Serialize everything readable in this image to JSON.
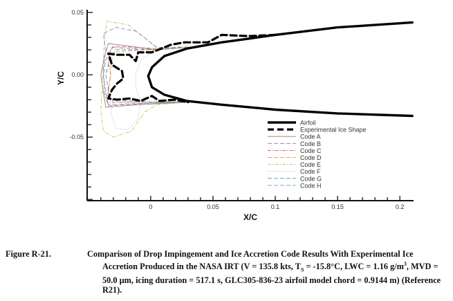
{
  "chart_data": {
    "type": "line",
    "xlabel": "X/C",
    "ylabel": "Y/C",
    "xlim": [
      -0.051,
      0.211
    ],
    "ylim": [
      -0.101,
      0.05
    ],
    "xticks": [
      0,
      0.05,
      0.1,
      0.15,
      0.2
    ],
    "xtick_labels": [
      "0",
      "0.05",
      "0.1",
      "0.15",
      "0.2"
    ],
    "yticks": [
      0.05,
      0.0,
      -0.05
    ],
    "ytick_labels": [
      "0.05",
      "0.00",
      "-0.05"
    ],
    "grid": false,
    "legend_placement": "center-right",
    "series": [
      {
        "name": "Airfoil",
        "color": "#000000",
        "style": "solid-thick",
        "points": [
          [
            0.21,
            0.042
          ],
          [
            0.15,
            0.038
          ],
          [
            0.1,
            0.032
          ],
          [
            0.079,
            0.029
          ],
          [
            0.057,
            0.026
          ],
          [
            0.029,
            0.021
          ],
          [
            0.011,
            0.015
          ],
          [
            0.001,
            0.006
          ],
          [
            -0.002,
            -0.001
          ],
          [
            0.001,
            -0.01
          ],
          [
            0.011,
            -0.016
          ],
          [
            0.029,
            -0.021
          ],
          [
            0.057,
            -0.024
          ],
          [
            0.079,
            -0.026
          ],
          [
            0.1,
            -0.028
          ],
          [
            0.15,
            -0.031
          ],
          [
            0.21,
            -0.033
          ]
        ]
      },
      {
        "name": "Experimental Ice Shape",
        "color": "#000000",
        "style": "dashed-thick",
        "points": [
          [
            0.1,
            0.032
          ],
          [
            0.079,
            0.031
          ],
          [
            0.057,
            0.032
          ],
          [
            0.046,
            0.026
          ],
          [
            0.027,
            0.026
          ],
          [
            0.016,
            0.024
          ],
          [
            0.001,
            0.018
          ],
          [
            -0.01,
            0.018
          ],
          [
            -0.012,
            0.011
          ],
          [
            -0.017,
            0.016
          ],
          [
            -0.027,
            0.016
          ],
          [
            -0.034,
            0.017
          ],
          [
            -0.031,
            0.008
          ],
          [
            -0.023,
            0.003
          ],
          [
            -0.022,
            -0.003
          ],
          [
            -0.027,
            -0.007
          ],
          [
            -0.031,
            -0.012
          ],
          [
            -0.034,
            -0.019
          ],
          [
            -0.027,
            -0.02
          ],
          [
            -0.017,
            -0.019
          ],
          [
            -0.008,
            -0.021
          ],
          [
            0.001,
            -0.017
          ],
          [
            0.007,
            -0.021
          ],
          [
            0.019,
            -0.02
          ],
          [
            0.03,
            -0.022
          ]
        ]
      },
      {
        "name": "Code A",
        "color": "#a87a68",
        "style": "solid",
        "points": [
          [
            0.03,
            0.022
          ],
          [
            0.005,
            0.02
          ],
          [
            -0.025,
            0.024
          ],
          [
            -0.034,
            0.025
          ],
          [
            -0.037,
            0.015
          ],
          [
            -0.04,
            0.0
          ],
          [
            -0.037,
            -0.02
          ],
          [
            -0.036,
            -0.026
          ],
          [
            -0.01,
            -0.024
          ],
          [
            0.03,
            -0.022
          ]
        ]
      },
      {
        "name": "Code B",
        "color": "#9a6cbc",
        "style": "dashed",
        "points": [
          [
            0.03,
            0.022
          ],
          [
            0.004,
            0.021
          ],
          [
            -0.03,
            0.023
          ],
          [
            -0.036,
            0.012
          ],
          [
            -0.038,
            0.0
          ],
          [
            -0.036,
            -0.015
          ],
          [
            -0.034,
            -0.025
          ],
          [
            -0.005,
            -0.023
          ],
          [
            0.03,
            -0.022
          ]
        ]
      },
      {
        "name": "Code C",
        "color": "#d84a78",
        "style": "dashdot",
        "points": [
          [
            0.03,
            0.022
          ],
          [
            0.004,
            0.02
          ],
          [
            -0.032,
            0.022
          ],
          [
            -0.034,
            0.01
          ],
          [
            -0.032,
            0.0
          ],
          [
            -0.034,
            -0.012
          ],
          [
            -0.035,
            -0.022
          ],
          [
            -0.003,
            -0.022
          ],
          [
            0.03,
            -0.022
          ]
        ]
      },
      {
        "name": "Code D",
        "color": "#f0a050",
        "style": "dashed",
        "points": [
          [
            0.03,
            0.022
          ],
          [
            0.004,
            0.021
          ],
          [
            -0.03,
            0.018
          ],
          [
            -0.032,
            0.006
          ],
          [
            -0.033,
            -0.006
          ],
          [
            -0.034,
            -0.016
          ],
          [
            -0.03,
            -0.022
          ],
          [
            0.0,
            -0.022
          ],
          [
            0.03,
            -0.022
          ]
        ]
      },
      {
        "name": "Code E",
        "color": "#a8d048",
        "style": "dashdot",
        "points": [
          [
            0.03,
            0.023
          ],
          [
            0.005,
            0.021
          ],
          [
            -0.005,
            0.03
          ],
          [
            -0.018,
            0.04
          ],
          [
            -0.035,
            0.043
          ],
          [
            -0.037,
            0.03
          ],
          [
            -0.038,
            0.01
          ],
          [
            -0.04,
            -0.03
          ],
          [
            -0.038,
            -0.045
          ],
          [
            -0.03,
            -0.05
          ],
          [
            -0.015,
            -0.045
          ],
          [
            -0.005,
            -0.03
          ],
          [
            0.005,
            -0.024
          ],
          [
            0.03,
            -0.022
          ]
        ]
      },
      {
        "name": "Code F",
        "color": "#b0b0b0",
        "style": "dotted",
        "points": [
          [
            0.03,
            0.022
          ],
          [
            0.005,
            0.02
          ],
          [
            -0.008,
            0.012
          ],
          [
            -0.012,
            0.0
          ],
          [
            -0.012,
            -0.01
          ],
          [
            -0.008,
            -0.022
          ],
          [
            -0.01,
            -0.035
          ],
          [
            -0.018,
            -0.044
          ],
          [
            -0.028,
            -0.043
          ],
          [
            -0.032,
            -0.03
          ],
          [
            -0.03,
            -0.022
          ],
          [
            0.0,
            -0.021
          ],
          [
            0.03,
            -0.022
          ]
        ]
      },
      {
        "name": "Code G",
        "color": "#40a090",
        "style": "dashed",
        "points": [
          [
            0.03,
            0.022
          ],
          [
            0.004,
            0.02
          ],
          [
            -0.028,
            0.02
          ],
          [
            -0.033,
            0.012
          ],
          [
            -0.036,
            0.0
          ],
          [
            -0.034,
            -0.012
          ],
          [
            -0.032,
            -0.02
          ],
          [
            0.0,
            -0.022
          ],
          [
            0.03,
            -0.022
          ]
        ]
      },
      {
        "name": "Code H",
        "color": "#8090c4",
        "style": "dashed",
        "points": [
          [
            0.03,
            0.022
          ],
          [
            0.005,
            0.022
          ],
          [
            -0.012,
            0.035
          ],
          [
            -0.028,
            0.038
          ],
          [
            -0.038,
            0.033
          ],
          [
            -0.036,
            0.02
          ],
          [
            -0.038,
            0.005
          ],
          [
            -0.037,
            -0.015
          ],
          [
            -0.034,
            -0.024
          ],
          [
            -0.01,
            -0.023
          ],
          [
            0.03,
            -0.022
          ]
        ]
      }
    ]
  },
  "caption": {
    "label": "Figure R-21.",
    "text": "Comparison of Drop Impingement and Ice Accretion Code Results With Experimental Ice Accretion Produced in the NASA IRT (V = 135.8 kts, T",
    "sub": "S",
    "text2": " = -15.8°C, LWC = 1.16 g/m",
    "sup": "3",
    "text3": ", MVD = 50.0 µm, icing duration = 517.1 s, GLC305-836-23 airfoil model chord = 0.9144 m) (Reference R21)."
  }
}
